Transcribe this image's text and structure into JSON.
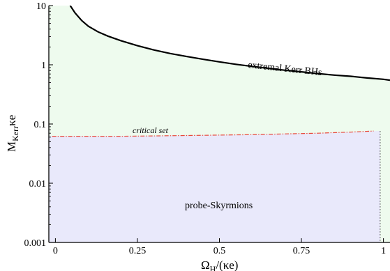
{
  "chart_data": {
    "type": "area",
    "xlabel": {
      "main": "Ω",
      "sub": "H",
      "rest": "/(κe)"
    },
    "ylabel": {
      "main": "M",
      "sub": "Kerr",
      "rest": "κe"
    },
    "xlim": [
      -0.02,
      1.02
    ],
    "ylim": [
      0.001,
      10
    ],
    "yscale": "log",
    "grid": false,
    "x_ticks": [
      0,
      0.25,
      0.5,
      0.75,
      1
    ],
    "x_tick_labels": [
      "0",
      "0.25",
      "0.5",
      "0.75",
      "1"
    ],
    "y_ticks": [
      0.001,
      0.01,
      0.1,
      1,
      10
    ],
    "y_tick_labels": [
      "0.001",
      "0.01",
      "0.1",
      "1",
      "10"
    ],
    "series": [
      {
        "kind": "extremal",
        "color": "#000000",
        "x": [
          0.045,
          0.06,
          0.08,
          0.1,
          0.13,
          0.16,
          0.2,
          0.25,
          0.3,
          0.35,
          0.4,
          0.45,
          0.5,
          0.55,
          0.6,
          0.65,
          0.7,
          0.75,
          0.8,
          0.85,
          0.9,
          0.95,
          1.0,
          1.02
        ],
        "y": [
          10.0,
          7.5,
          5.6,
          4.5,
          3.6,
          3.05,
          2.55,
          2.1,
          1.78,
          1.55,
          1.38,
          1.24,
          1.12,
          1.02,
          0.94,
          0.87,
          0.81,
          0.76,
          0.71,
          0.67,
          0.64,
          0.6,
          0.57,
          0.55
        ]
      },
      {
        "kind": "critical",
        "color": "#e8483a",
        "x": [
          -0.01,
          0.1,
          0.2,
          0.3,
          0.4,
          0.5,
          0.6,
          0.7,
          0.8,
          0.9,
          0.97
        ],
        "y": [
          0.062,
          0.062,
          0.062,
          0.063,
          0.064,
          0.065,
          0.066,
          0.068,
          0.07,
          0.073,
          0.076
        ]
      }
    ],
    "region_colors": {
      "kerr": "#eefbee",
      "skyrmion": "#e9e9fb"
    },
    "vertical_boundary_x": 0.99,
    "annotations": {
      "extremal_label": "extremal Kerr BHs",
      "critical_label": "critical set",
      "region_label": "probe-Skyrmions"
    }
  }
}
